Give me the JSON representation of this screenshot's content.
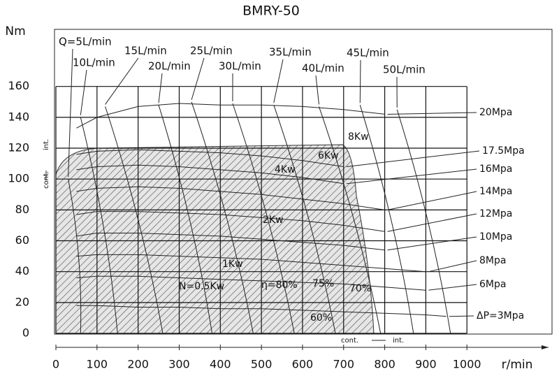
{
  "chart_data": {
    "type": "line",
    "title": "BMRY-50",
    "y_label": "Nm",
    "x_label": "r/min",
    "xlim": [
      0,
      1207
    ],
    "ylim": [
      0,
      197
    ],
    "xticks": [
      0,
      100,
      200,
      300,
      400,
      500,
      600,
      700,
      800,
      900,
      1000
    ],
    "yticks": [
      0,
      20,
      40,
      60,
      80,
      100,
      120,
      140,
      160
    ],
    "grid": true,
    "x": [
      50,
      100,
      200,
      300,
      400,
      500,
      600,
      700,
      800,
      900,
      950
    ],
    "series": [
      {
        "name": "ΔP=3Mpa",
        "color": "#222",
        "values": [
          18,
          18,
          17,
          17,
          16,
          16,
          15,
          14,
          13,
          12,
          11
        ]
      },
      {
        "name": "6Mpa",
        "color": "#222",
        "values": [
          36,
          37,
          37,
          36,
          35,
          34,
          33,
          32,
          30,
          28,
          null
        ]
      },
      {
        "name": "8Mpa",
        "color": "#222",
        "values": [
          50,
          51,
          51,
          50,
          49,
          48,
          46,
          44,
          42,
          40,
          null
        ]
      },
      {
        "name": "10Mpa",
        "color": "#222",
        "values": [
          63,
          65,
          65,
          64,
          63,
          61,
          59,
          57,
          54,
          null,
          null
        ]
      },
      {
        "name": "12Mpa",
        "color": "#222",
        "values": [
          77,
          79,
          79,
          78,
          77,
          75,
          73,
          70,
          66,
          null,
          null
        ]
      },
      {
        "name": "14Mpa",
        "color": "#222",
        "values": [
          92,
          94,
          95,
          94,
          92,
          90,
          87,
          84,
          80,
          null,
          null
        ]
      },
      {
        "name": "16Mpa",
        "color": "#222",
        "values": [
          106,
          108,
          109,
          108,
          106,
          104,
          101,
          97,
          null,
          null,
          null
        ]
      },
      {
        "name": "17.5Mpa",
        "color": "#222",
        "values": [
          116,
          118,
          119,
          118,
          117,
          115,
          112,
          108,
          null,
          null,
          null
        ]
      },
      {
        "name": "20Mpa",
        "color": "#222",
        "values": [
          133,
          140,
          147,
          149,
          148,
          148,
          147,
          145,
          142,
          null,
          null
        ]
      }
    ],
    "flow_lines": [
      {
        "name": "Q=5L/min",
        "x": [
          30,
          60
        ],
        "values": [
          100,
          0
        ]
      },
      {
        "name": "10L/min",
        "x": [
          60,
          150
        ],
        "values": [
          140,
          0
        ]
      },
      {
        "name": "15L/min",
        "x": [
          120,
          260
        ],
        "values": [
          147,
          0
        ]
      },
      {
        "name": "20L/min",
        "x": [
          250,
          380
        ],
        "values": [
          148,
          0
        ]
      },
      {
        "name": "25L/min",
        "x": [
          330,
          480
        ],
        "values": [
          150,
          0
        ]
      },
      {
        "name": "30L/min",
        "x": [
          430,
          580
        ],
        "values": [
          149,
          0
        ]
      },
      {
        "name": "35L/min",
        "x": [
          530,
          680
        ],
        "values": [
          148,
          0
        ]
      },
      {
        "name": "40L/min",
        "x": [
          640,
          790
        ],
        "values": [
          147,
          0
        ]
      },
      {
        "name": "45L/min",
        "x": [
          740,
          870
        ],
        "values": [
          148,
          0
        ]
      },
      {
        "name": "50L/min",
        "x": [
          830,
          960
        ],
        "values": [
          145,
          0
        ]
      }
    ],
    "annotations": [
      "8Kw",
      "6Kw",
      "4Kw",
      "2Kw",
      "1Kw",
      "N=0.5Kw",
      "η=80%",
      "75%",
      "70%",
      "60%",
      "cont.",
      "int.",
      "cont.",
      "int."
    ]
  }
}
